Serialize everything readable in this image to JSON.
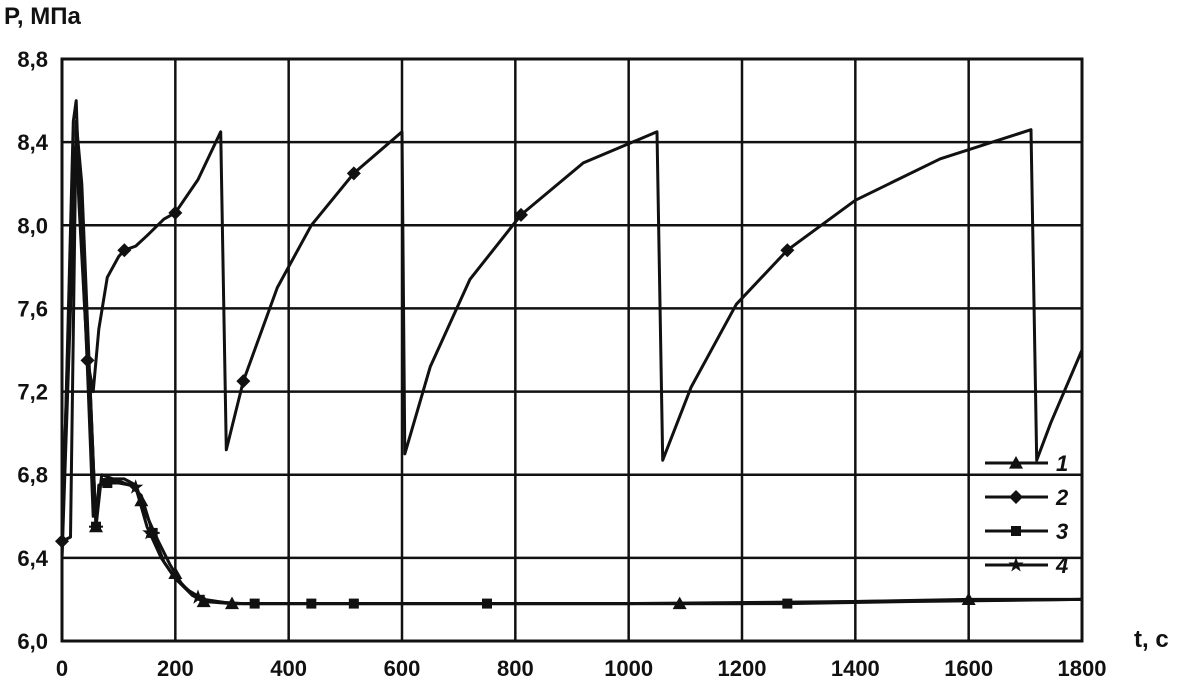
{
  "chart_data": {
    "type": "line",
    "title": "",
    "ylabel": "P, МПа",
    "xlabel": "t, c",
    "xlim": [
      0,
      1800
    ],
    "ylim": [
      6.0,
      8.8
    ],
    "x_ticks": [
      0,
      200,
      400,
      600,
      800,
      1000,
      1200,
      1400,
      1600,
      1800
    ],
    "y_ticks": [
      6.0,
      6.4,
      6.8,
      7.2,
      7.6,
      8.0,
      8.4,
      8.8
    ],
    "x_tick_labels": [
      "0",
      "200",
      "400",
      "600",
      "800",
      "1000",
      "1200",
      "1400",
      "1600",
      "1800"
    ],
    "y_tick_labels": [
      "6,0",
      "6,4",
      "6,8",
      "7,2",
      "7,6",
      "8,0",
      "8,4",
      "8,8"
    ],
    "grid": true,
    "legend_position": "bottom-right",
    "series": [
      {
        "name": "1",
        "marker": "triangle",
        "points": [
          [
            0,
            6.4
          ],
          [
            20,
            8.5
          ],
          [
            25,
            8.6
          ],
          [
            30,
            8.2
          ],
          [
            40,
            7.6
          ],
          [
            50,
            7.2
          ],
          [
            60,
            6.55
          ],
          [
            70,
            6.8
          ],
          [
            90,
            6.78
          ],
          [
            110,
            6.78
          ],
          [
            130,
            6.75
          ],
          [
            150,
            6.6
          ],
          [
            170,
            6.48
          ],
          [
            190,
            6.37
          ],
          [
            210,
            6.28
          ],
          [
            230,
            6.22
          ],
          [
            250,
            6.19
          ],
          [
            300,
            6.18
          ],
          [
            400,
            6.18
          ],
          [
            600,
            6.18
          ],
          [
            800,
            6.18
          ],
          [
            1000,
            6.18
          ],
          [
            1200,
            6.18
          ],
          [
            1400,
            6.19
          ],
          [
            1600,
            6.2
          ],
          [
            1800,
            6.2
          ]
        ],
        "markers_at": [
          60,
          140,
          200,
          250,
          300,
          1090,
          1600
        ]
      },
      {
        "name": "2",
        "marker": "diamond",
        "points": [
          [
            0,
            6.48
          ],
          [
            20,
            8.3
          ],
          [
            25,
            8.4
          ],
          [
            30,
            8.1
          ],
          [
            45,
            7.35
          ],
          [
            55,
            7.2
          ],
          [
            65,
            7.5
          ],
          [
            80,
            7.75
          ],
          [
            100,
            7.85
          ],
          [
            110,
            7.88
          ],
          [
            130,
            7.9
          ],
          [
            150,
            7.95
          ],
          [
            180,
            8.03
          ],
          [
            200,
            8.06
          ],
          [
            240,
            8.22
          ],
          [
            280,
            8.45
          ],
          [
            290,
            6.92
          ],
          [
            320,
            7.25
          ],
          [
            380,
            7.7
          ],
          [
            440,
            8.0
          ],
          [
            515,
            8.25
          ],
          [
            600,
            8.45
          ],
          [
            605,
            6.9
          ],
          [
            650,
            7.32
          ],
          [
            720,
            7.74
          ],
          [
            810,
            8.05
          ],
          [
            920,
            8.3
          ],
          [
            1050,
            8.45
          ],
          [
            1060,
            6.87
          ],
          [
            1110,
            7.22
          ],
          [
            1190,
            7.62
          ],
          [
            1280,
            7.88
          ],
          [
            1400,
            8.12
          ],
          [
            1550,
            8.32
          ],
          [
            1710,
            8.46
          ],
          [
            1720,
            6.87
          ],
          [
            1745,
            7.05
          ],
          [
            1800,
            7.4
          ]
        ],
        "markers_at": [
          0,
          45,
          110,
          200,
          320,
          515,
          810,
          1280
        ]
      },
      {
        "name": "3",
        "marker": "square-cross",
        "points": [
          [
            0,
            6.48
          ],
          [
            15,
            6.5
          ],
          [
            25,
            8.5
          ],
          [
            35,
            8.2
          ],
          [
            50,
            7.2
          ],
          [
            60,
            6.55
          ],
          [
            65,
            6.75
          ],
          [
            80,
            6.76
          ],
          [
            100,
            6.76
          ],
          [
            120,
            6.75
          ],
          [
            140,
            6.7
          ],
          [
            160,
            6.52
          ],
          [
            180,
            6.38
          ],
          [
            200,
            6.3
          ],
          [
            225,
            6.24
          ],
          [
            250,
            6.2
          ],
          [
            300,
            6.18
          ],
          [
            400,
            6.18
          ],
          [
            600,
            6.18
          ],
          [
            800,
            6.18
          ],
          [
            1000,
            6.18
          ],
          [
            1280,
            6.18
          ],
          [
            1500,
            6.19
          ],
          [
            1800,
            6.2
          ]
        ],
        "markers_at": [
          60,
          80,
          160,
          340,
          440,
          515,
          750,
          1280
        ]
      },
      {
        "name": "4",
        "marker": "star",
        "points": [
          [
            0,
            6.4
          ],
          [
            25,
            8.4
          ],
          [
            30,
            8.3
          ],
          [
            45,
            7.3
          ],
          [
            55,
            6.6
          ],
          [
            70,
            6.77
          ],
          [
            100,
            6.77
          ],
          [
            130,
            6.74
          ],
          [
            150,
            6.55
          ],
          [
            175,
            6.4
          ],
          [
            200,
            6.3
          ],
          [
            230,
            6.22
          ],
          [
            260,
            6.19
          ],
          [
            320,
            6.18
          ],
          [
            600,
            6.18
          ],
          [
            1000,
            6.18
          ],
          [
            1400,
            6.19
          ],
          [
            1800,
            6.2
          ]
        ],
        "markers_at": [
          130,
          155,
          240
        ]
      }
    ]
  }
}
